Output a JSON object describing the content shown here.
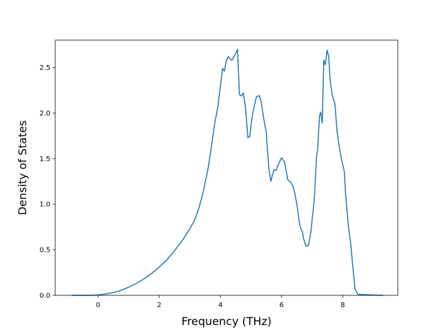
{
  "chart_data": {
    "type": "line",
    "title": "",
    "xlabel": "Frequency (THz)",
    "ylabel": "Density of States",
    "xlim": [
      -1.4,
      9.8
    ],
    "ylim": [
      0.0,
      2.8
    ],
    "xticks": [
      0,
      2,
      4,
      6,
      8
    ],
    "xtick_labels": [
      "0",
      "2",
      "4",
      "6",
      "8"
    ],
    "yticks": [
      0.0,
      0.5,
      1.0,
      1.5,
      2.0,
      2.5
    ],
    "ytick_labels": [
      "0.0",
      "0.5",
      "1.0",
      "1.5",
      "2.0",
      "2.5"
    ],
    "grid": false,
    "legend": "none",
    "series": [
      {
        "name": "",
        "color": "#1f77b4",
        "x": [
          -0.85,
          -0.2,
          0.0,
          0.25,
          0.5,
          0.75,
          1.0,
          1.25,
          1.5,
          1.75,
          2.0,
          2.25,
          2.5,
          2.75,
          3.0,
          3.15,
          3.3,
          3.45,
          3.6,
          3.7,
          3.82,
          3.88,
          3.93,
          3.97,
          4.02,
          4.07,
          4.13,
          4.2,
          4.26,
          4.33,
          4.38,
          4.43,
          4.48,
          4.56,
          4.62,
          4.65,
          4.69,
          4.75,
          4.82,
          4.9,
          4.96,
          5.0,
          5.08,
          5.18,
          5.28,
          5.34,
          5.42,
          5.5,
          5.58,
          5.65,
          5.7,
          5.76,
          5.82,
          5.9,
          6.0,
          6.1,
          6.2,
          6.3,
          6.38,
          6.42,
          6.5,
          6.58,
          6.63,
          6.68,
          6.72,
          6.8,
          6.88,
          6.96,
          7.02,
          7.07,
          7.1,
          7.14,
          7.18,
          7.24,
          7.28,
          7.33,
          7.38,
          7.43,
          7.49,
          7.54,
          7.59,
          7.66,
          7.74,
          7.82,
          7.9,
          7.98,
          8.05,
          8.1,
          8.15,
          8.2,
          8.25,
          8.3,
          8.4,
          8.5,
          9.3
        ],
        "y": [
          0.0,
          0.0,
          0.005,
          0.015,
          0.03,
          0.055,
          0.09,
          0.13,
          0.18,
          0.24,
          0.31,
          0.39,
          0.49,
          0.6,
          0.73,
          0.82,
          0.96,
          1.15,
          1.4,
          1.62,
          1.9,
          2.0,
          2.1,
          2.22,
          2.35,
          2.49,
          2.46,
          2.58,
          2.62,
          2.59,
          2.58,
          2.61,
          2.64,
          2.7,
          2.21,
          2.19,
          2.19,
          2.22,
          2.06,
          1.73,
          1.74,
          1.87,
          2.04,
          2.18,
          2.19,
          2.11,
          1.93,
          1.79,
          1.4,
          1.25,
          1.32,
          1.38,
          1.37,
          1.44,
          1.51,
          1.46,
          1.27,
          1.24,
          1.19,
          1.14,
          1.0,
          0.8,
          0.73,
          0.7,
          0.62,
          0.54,
          0.55,
          0.7,
          0.9,
          1.05,
          1.24,
          1.52,
          1.6,
          1.97,
          2.01,
          1.89,
          2.58,
          2.53,
          2.69,
          2.62,
          2.35,
          2.19,
          2.11,
          1.78,
          1.6,
          1.46,
          1.36,
          1.08,
          0.89,
          0.71,
          0.6,
          0.42,
          0.07,
          0.01,
          0.0
        ]
      }
    ]
  }
}
